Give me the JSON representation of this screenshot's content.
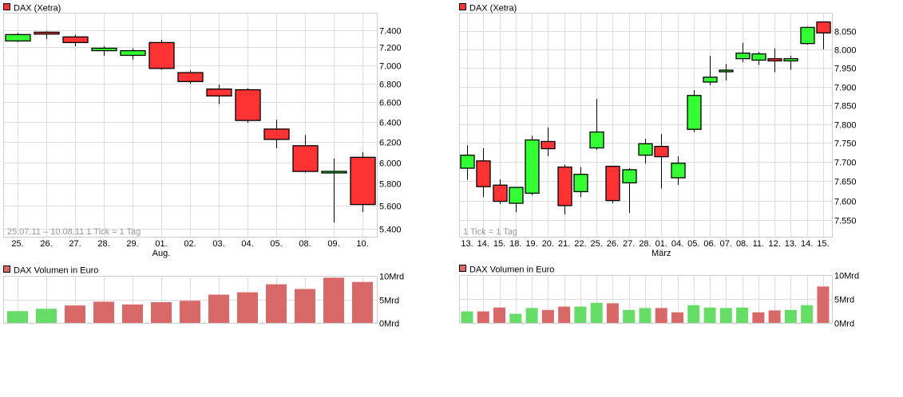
{
  "colors": {
    "up": "#33ff33",
    "down": "#ff3333",
    "vol_up": "#66dd66",
    "vol_down": "#d96868",
    "grid": "#dddddd",
    "border": "#cccccc"
  },
  "chart_data": [
    {
      "type": "candlestick",
      "title": "DAX (Xetra)",
      "yscale": "log",
      "ylim": [
        5400,
        7400
      ],
      "yticks": [
        7400,
        7200,
        7000,
        6800,
        6600,
        6400,
        6200,
        6000,
        5800,
        5600,
        5400
      ],
      "ytick_labels": [
        "7.400",
        "7.200",
        "7.000",
        "6.800",
        "6.600",
        "6.400",
        "6.200",
        "6.000",
        "5.800",
        "5.600",
        "5.400"
      ],
      "categories": [
        "25.",
        "26.",
        "27.",
        "28.",
        "29.",
        "01.",
        "02.",
        "03.",
        "04.",
        "05.",
        "08.",
        "09.",
        "10."
      ],
      "month_label": "Aug.",
      "month_label_at": "01.",
      "note": "25.07.11 – 10.08.11   1 Tick = 1 Tag",
      "grid": true,
      "ohlc": [
        [
          7273,
          7366,
          7260,
          7347
        ],
        [
          7375,
          7388,
          7295,
          7353
        ],
        [
          7320,
          7347,
          7213,
          7255
        ],
        [
          7162,
          7213,
          7103,
          7190
        ],
        [
          7109,
          7190,
          7060,
          7162
        ],
        [
          7255,
          7286,
          6950,
          6963
        ],
        [
          6917,
          6942,
          6796,
          6820
        ],
        [
          6739,
          6788,
          6579,
          6666
        ],
        [
          6732,
          6749,
          6388,
          6412
        ],
        [
          6325,
          6420,
          6135,
          6222
        ],
        [
          6160,
          6266,
          5904,
          5914
        ],
        [
          5900,
          6037,
          5453,
          5915
        ],
        [
          6048,
          6096,
          5545,
          5612
        ]
      ]
    },
    {
      "type": "bar",
      "title": "DAX Volumen in Euro",
      "ylim": [
        0,
        10
      ],
      "yticks": [
        10,
        5,
        0
      ],
      "ytick_labels": [
        "10Mrd",
        "5Mrd",
        "0Mrd"
      ],
      "unit": "Mrd",
      "grid": true,
      "values": [
        2.5,
        3.0,
        3.7,
        4.5,
        3.9,
        4.4,
        4.7,
        6.0,
        6.5,
        8.2,
        7.2,
        9.6,
        8.7
      ],
      "direction": [
        "up",
        "up",
        "down",
        "down",
        "down",
        "down",
        "down",
        "down",
        "down",
        "down",
        "down",
        "down",
        "down"
      ]
    },
    {
      "type": "candlestick",
      "title": "DAX (Xetra)",
      "yscale": "log",
      "ylim": [
        7550,
        8050
      ],
      "yticks": [
        8050,
        8000,
        7950,
        7900,
        7850,
        7800,
        7750,
        7700,
        7650,
        7600,
        7550
      ],
      "ytick_labels": [
        "8.050",
        "8.000",
        "7.950",
        "7.900",
        "7.850",
        "7.800",
        "7.750",
        "7.700",
        "7.650",
        "7.600",
        "7.550"
      ],
      "categories": [
        "13.",
        "14.",
        "15.",
        "18.",
        "19.",
        "20.",
        "21.",
        "22.",
        "25.",
        "26.",
        "27.",
        "28.",
        "01.",
        "04.",
        "05.",
        "06.",
        "07.",
        "08.",
        "11.",
        "12.",
        "13.",
        "14.",
        "15."
      ],
      "month_label": "März",
      "month_label_at": "01.",
      "note": "1 Tick = 1 Tag",
      "grid": true,
      "ohlc": [
        [
          7684,
          7744,
          7654,
          7718
        ],
        [
          7703,
          7736,
          7609,
          7636
        ],
        [
          7640,
          7655,
          7591,
          7598
        ],
        [
          7593,
          7634,
          7570,
          7634
        ],
        [
          7619,
          7769,
          7614,
          7758
        ],
        [
          7754,
          7791,
          7715,
          7735
        ],
        [
          7687,
          7693,
          7564,
          7587
        ],
        [
          7623,
          7687,
          7609,
          7668
        ],
        [
          7737,
          7867,
          7732,
          7779
        ],
        [
          7689,
          7689,
          7593,
          7600
        ],
        [
          7646,
          7684,
          7568,
          7680
        ],
        [
          7718,
          7761,
          7696,
          7748
        ],
        [
          7741,
          7774,
          7631,
          7714
        ],
        [
          7659,
          7715,
          7641,
          7697
        ],
        [
          7786,
          7890,
          7779,
          7876
        ],
        [
          7912,
          7983,
          7903,
          7925
        ],
        [
          7940,
          7961,
          7916,
          7944
        ],
        [
          7975,
          8018,
          7966,
          7990
        ],
        [
          7971,
          7993,
          7958,
          7988
        ],
        [
          7975,
          8003,
          7939,
          7969
        ],
        [
          7969,
          7983,
          7945,
          7975
        ],
        [
          8016,
          8062,
          8013,
          8060
        ],
        [
          8075,
          8075,
          8000,
          8045
        ]
      ]
    },
    {
      "type": "bar",
      "title": "DAX Volumen in Euro",
      "ylim": [
        0,
        10
      ],
      "yticks": [
        10,
        5,
        0
      ],
      "ytick_labels": [
        "10Mrd",
        "5Mrd",
        "0Mrd"
      ],
      "unit": "Mrd",
      "grid": true,
      "values": [
        2.4,
        2.4,
        3.2,
        1.9,
        3.1,
        2.7,
        3.4,
        3.4,
        4.2,
        4.1,
        2.7,
        3.1,
        3.1,
        2.2,
        3.7,
        3.2,
        3.1,
        3.2,
        2.2,
        2.6,
        2.7,
        3.7,
        7.6
      ],
      "direction": [
        "up",
        "down",
        "down",
        "up",
        "up",
        "down",
        "down",
        "up",
        "up",
        "down",
        "up",
        "up",
        "down",
        "down",
        "up",
        "up",
        "up",
        "up",
        "down",
        "down",
        "up",
        "up",
        "down"
      ]
    }
  ]
}
